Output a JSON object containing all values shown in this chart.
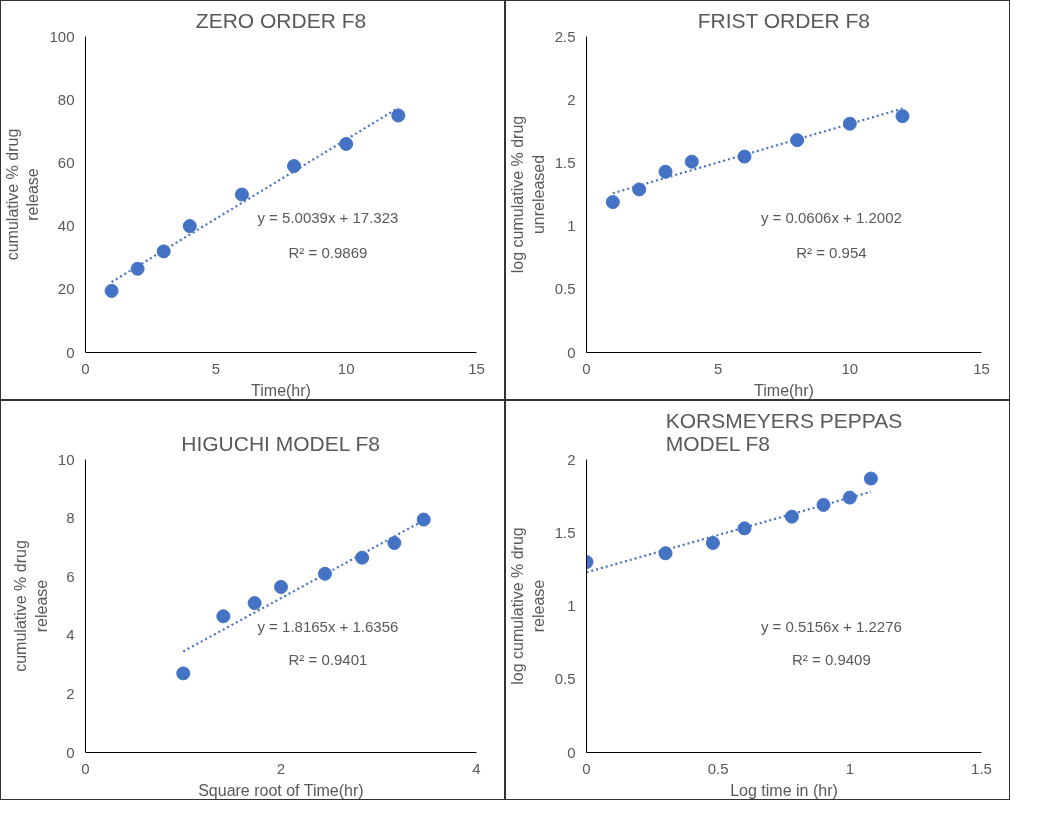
{
  "chart_data": [
    {
      "type": "scatter",
      "title": "ZERO ORDER F8",
      "xlabel": "Time(hr)",
      "ylabel": "cumulative % drug release",
      "xlim": [
        0,
        15
      ],
      "xticks": [
        0,
        5,
        10,
        15
      ],
      "ylim": [
        0,
        100
      ],
      "yticks": [
        0,
        20,
        40,
        60,
        80,
        100
      ],
      "marker": "circle",
      "series": [
        {
          "color": "#4472c4",
          "x": [
            1,
            2,
            3,
            4,
            6,
            8,
            10,
            12
          ],
          "values": [
            19.5,
            26.5,
            32,
            40,
            50,
            59,
            66,
            75
          ]
        },
        {
          "type": "line",
          "marker": "none",
          "line_style": "dotted",
          "color": "#4472c4",
          "x": [
            1,
            12
          ],
          "values": [
            22.3,
            77.4
          ]
        }
      ],
      "annotations": [
        "y = 5.0039x + 17.323",
        "R² = 0.9869"
      ]
    },
    {
      "type": "scatter",
      "title": "FRIST ORDER F8",
      "xlabel": "Time(hr)",
      "ylabel": "log cumulative % drug unreleased",
      "xlim": [
        0,
        15
      ],
      "xticks": [
        0,
        5,
        10,
        15
      ],
      "ylim": [
        0,
        2.5
      ],
      "yticks": [
        0,
        0.5,
        1,
        1.5,
        2,
        2.5
      ],
      "marker": "circle",
      "series": [
        {
          "color": "#4472c4",
          "x": [
            1,
            2,
            3,
            4,
            6,
            8,
            10,
            12
          ],
          "values": [
            1.19,
            1.29,
            1.43,
            1.51,
            1.55,
            1.68,
            1.81,
            1.87
          ]
        },
        {
          "type": "line",
          "marker": "none",
          "line_style": "dotted",
          "color": "#4472c4",
          "x": [
            1,
            12
          ],
          "values": [
            1.26,
            1.93
          ]
        }
      ],
      "annotations": [
        "y = 0.0606x + 1.2002",
        "R² = 0.954"
      ]
    },
    {
      "type": "scatter",
      "title": "HIGUCHI MODEL F8",
      "xlabel": "Square root of Time(hr)",
      "ylabel": "cumulative % drug release",
      "xlim": [
        0,
        4
      ],
      "xticks": [
        0,
        2,
        4
      ],
      "ylim": [
        0,
        10
      ],
      "yticks": [
        0,
        2,
        4,
        6,
        8,
        10
      ],
      "marker": "circle",
      "series": [
        {
          "color": "#4472c4",
          "x": [
            1,
            1.41,
            1.73,
            2,
            2.45,
            2.83,
            3.16,
            3.46
          ],
          "values": [
            2.7,
            4.65,
            5.1,
            5.65,
            6.1,
            6.65,
            7.15,
            7.95
          ]
        },
        {
          "type": "line",
          "marker": "none",
          "line_style": "dotted",
          "color": "#4472c4",
          "x": [
            1,
            3.46
          ],
          "values": [
            3.45,
            7.92
          ]
        }
      ],
      "annotations": [
        "y = 1.8165x + 1.6356",
        "R² = 0.9401"
      ]
    },
    {
      "type": "scatter",
      "title": "KORSMEYERS PEPPAS MODEL F8",
      "xlabel": "Log time in (hr)",
      "ylabel": "log cumulative % drug release",
      "xlim": [
        0,
        1.5
      ],
      "xticks": [
        0,
        0.5,
        1,
        1.5
      ],
      "ylim": [
        0,
        2
      ],
      "yticks": [
        0,
        0.5,
        1,
        1.5,
        2
      ],
      "marker": "circle",
      "series": [
        {
          "color": "#4472c4",
          "x": [
            0,
            0.3,
            0.48,
            0.6,
            0.78,
            0.9,
            1,
            1.08
          ],
          "values": [
            1.3,
            1.36,
            1.43,
            1.53,
            1.61,
            1.69,
            1.74,
            1.87
          ]
        },
        {
          "type": "line",
          "marker": "none",
          "line_style": "dotted",
          "color": "#4472c4",
          "x": [
            0,
            1.08
          ],
          "values": [
            1.23,
            1.78
          ]
        }
      ],
      "annotations": [
        "y = 0.5156x + 1.2276",
        "R² = 0.9409"
      ]
    }
  ]
}
